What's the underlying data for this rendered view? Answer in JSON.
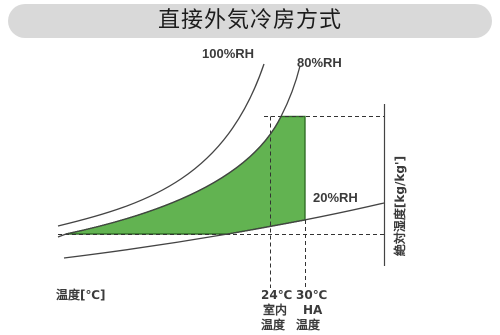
{
  "title": "直接外気冷房方式",
  "curves": {
    "rh100": "100%RH",
    "rh80": "80%RH",
    "rh20": "20%RH"
  },
  "axes": {
    "x_label": "温度[℃]",
    "y_label": "絶対湿度[kg/kg']"
  },
  "markers": [
    {
      "value": "24℃",
      "line1": "室内",
      "line2": "温度"
    },
    {
      "value": "30℃",
      "line1": "HA",
      "line2": "温度"
    }
  ],
  "colors": {
    "banner": "#d9d9d9",
    "region_fill": "#62b351",
    "region_stroke": "#2e6b24"
  }
}
